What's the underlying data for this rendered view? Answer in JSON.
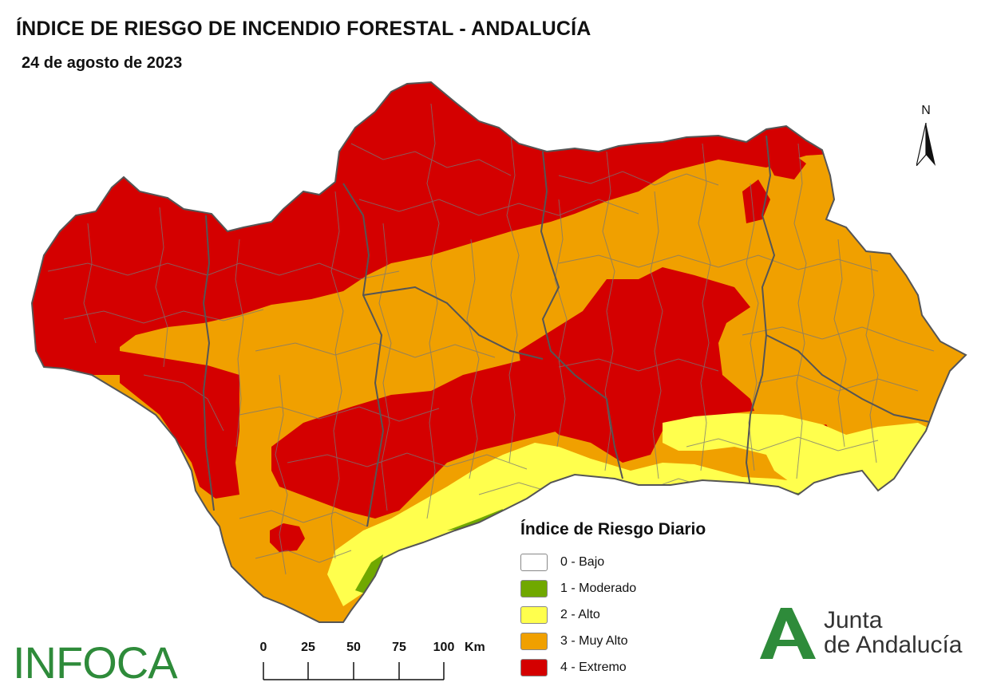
{
  "header": {
    "title": "ÍNDICE DE RIESGO DE INCENDIO FORESTAL - ANDALUCÍA",
    "date": "24 de agosto de 2023"
  },
  "north_arrow": {
    "label": "N"
  },
  "legend": {
    "title": "Índice de Riesgo Diario",
    "items": [
      {
        "label": "0 - Bajo",
        "color": "#ffffff"
      },
      {
        "label": "1 - Moderado",
        "color": "#70a800"
      },
      {
        "label": "2 - Alto",
        "color": "#ffff4d"
      },
      {
        "label": "3 - Muy Alto",
        "color": "#f0a000"
      },
      {
        "label": "4 - Extremo",
        "color": "#d40000"
      }
    ]
  },
  "scale_bar": {
    "ticks": [
      "0",
      "25",
      "50",
      "75",
      "100"
    ],
    "unit": "Km"
  },
  "logos": {
    "infoca": "INFOCA",
    "junta_line1": "Junta",
    "junta_line2": "de Andalucía"
  },
  "map_colors": {
    "extremo": "#d40000",
    "muy_alto": "#f0a000",
    "alto": "#ffff4d",
    "moderado": "#70a800",
    "border": "#666666"
  }
}
